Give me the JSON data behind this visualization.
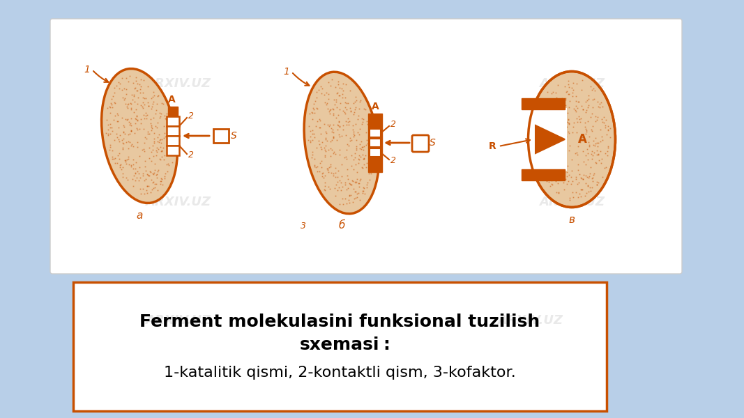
{
  "bg_color": "#b8cfe8",
  "top_panel_color": "#ffffff",
  "bottom_panel_color": "#ffffff",
  "bottom_border_color": "#c85000",
  "enzyme_color": "#c85000",
  "enzyme_fill": "#e8c8a0",
  "title_line1": "Ferment molekulasini funksional tuzilish",
  "title_line2": "sxemasi",
  "title_colon": ":",
  "subtitle": "1-katalitik qismi, 2-kontaktli qism, 3-kofaktor.",
  "label_a": "a",
  "label_b": "б",
  "label_c": "в",
  "watermark": "ARXIV.UZ"
}
